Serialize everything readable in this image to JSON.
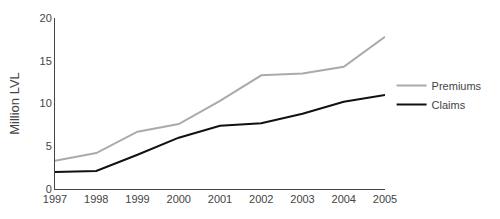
{
  "chart_data": {
    "type": "line",
    "x": [
      1997,
      1998,
      1999,
      2000,
      2001,
      2002,
      2003,
      2004,
      2005
    ],
    "series": [
      {
        "name": "Premiums",
        "color": "#aaaaaa",
        "values": [
          3.3,
          4.2,
          6.7,
          7.6,
          10.3,
          13.3,
          13.5,
          14.3,
          17.8
        ]
      },
      {
        "name": "Claims",
        "color": "#111111",
        "values": [
          2.0,
          2.1,
          4.0,
          6.0,
          7.4,
          7.7,
          8.8,
          10.2,
          11.0
        ]
      }
    ],
    "ylabel": "Million LVL",
    "xlim": [
      1997,
      2005
    ],
    "xticks": [
      1997,
      1998,
      1999,
      2000,
      2001,
      2002,
      2003,
      2004,
      2005
    ],
    "ylim": [
      0,
      20
    ],
    "yticks": [
      0,
      5,
      10,
      15,
      20
    ],
    "grid": false,
    "legend": "right"
  }
}
